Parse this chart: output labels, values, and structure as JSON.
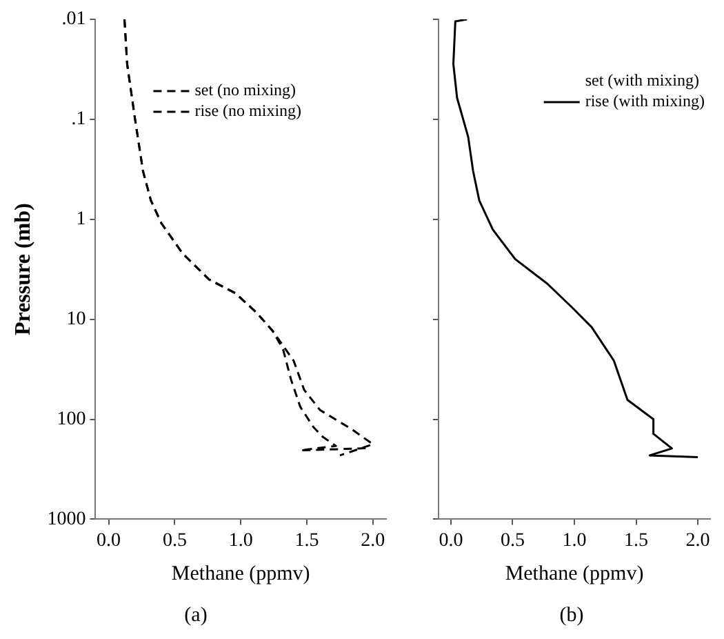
{
  "chart_data": [
    {
      "type": "line",
      "title": "(a)",
      "xlabel": "Methane (ppmv)",
      "ylabel": "Pressure (mb)",
      "log": "y",
      "xlim": [
        -0.1,
        2.1
      ],
      "xticks": [
        {
          "value": 0,
          "label": "0.0"
        },
        {
          "value": 0.5,
          "label": "0.5"
        },
        {
          "value": 1,
          "label": "1.0"
        },
        {
          "value": 1.5,
          "label": "1.5"
        },
        {
          "value": 2,
          "label": "2.0"
        }
      ],
      "ylim": [
        1000,
        0.01
      ],
      "yticks": [
        {
          "value": 0.01,
          "label": ".01"
        },
        {
          "value": 0.1,
          "label": ".1"
        },
        1,
        10,
        100,
        1000
      ],
      "grid": false,
      "marker": "none",
      "line_style": "dashed",
      "legend": "top left",
      "series": [
        {
          "name": "set (no mixing)",
          "color": "#000000",
          "x": [
            0.12,
            0.14,
            0.2,
            0.26,
            0.32,
            0.4,
            0.56,
            0.76,
            0.96,
            1.12,
            1.24,
            1.4,
            1.48,
            1.6,
            1.84,
            2.0,
            1.75
          ],
          "values": [
            0.01,
            0.028,
            0.1,
            0.33,
            0.65,
            1.1,
            2.2,
            4,
            5.5,
            8.6,
            13,
            26,
            51,
            81,
            126,
            178,
            230
          ]
        },
        {
          "name": "rise (no mixing)",
          "color": "#000000",
          "x": [
            0.12,
            0.14,
            0.2,
            0.26,
            0.32,
            0.4,
            0.56,
            0.76,
            0.96,
            1.12,
            1.24,
            1.32,
            1.38,
            1.45,
            1.55,
            1.62,
            1.72,
            1.45,
            1.95
          ],
          "values": [
            0.01,
            0.028,
            0.1,
            0.33,
            0.65,
            1.1,
            2.2,
            4,
            5.5,
            8.6,
            13,
            20,
            40,
            75,
            120,
            150,
            185,
            205,
            195
          ]
        }
      ]
    },
    {
      "type": "line",
      "title": "(b)",
      "xlabel": "Methane (ppmv)",
      "log": "y",
      "xlim": [
        -0.1,
        2.1
      ],
      "xticks": [
        {
          "value": 0,
          "label": "0.0"
        },
        {
          "value": 0.5,
          "label": "0.5"
        },
        {
          "value": 1,
          "label": "1.0"
        },
        {
          "value": 1.5,
          "label": "1.5"
        },
        {
          "value": 2,
          "label": "2.0"
        }
      ],
      "ylim": [
        1000,
        0.01
      ],
      "yticks": [
        {
          "value": 0.01,
          "label": null
        },
        {
          "value": 0.1,
          "label": null
        },
        {
          "value": 1,
          "label": null
        },
        {
          "value": 10,
          "label": null
        },
        {
          "value": 100,
          "label": null
        },
        {
          "value": 1000,
          "label": null
        }
      ],
      "tick_labels": "x",
      "grid": false,
      "marker": "none",
      "line_style": "solid",
      "legend": "top right",
      "annotations": [
        "set (with mixing)"
      ],
      "series": [
        {
          "name": "rise (with mixing)",
          "color": "#000000",
          "x": [
            0.13,
            0.036,
            0.02,
            0.05,
            0.14,
            0.18,
            0.23,
            0.34,
            0.52,
            0.78,
            0.99,
            1.14,
            1.32,
            1.43,
            1.64,
            1.64,
            1.79,
            1.61,
            2.0
          ],
          "values": [
            0.01,
            0.0105,
            0.028,
            0.061,
            0.15,
            0.33,
            0.65,
            1.27,
            2.5,
            4.4,
            7.8,
            12,
            26,
            64,
            100,
            140,
            196,
            230,
            240
          ]
        }
      ]
    }
  ]
}
